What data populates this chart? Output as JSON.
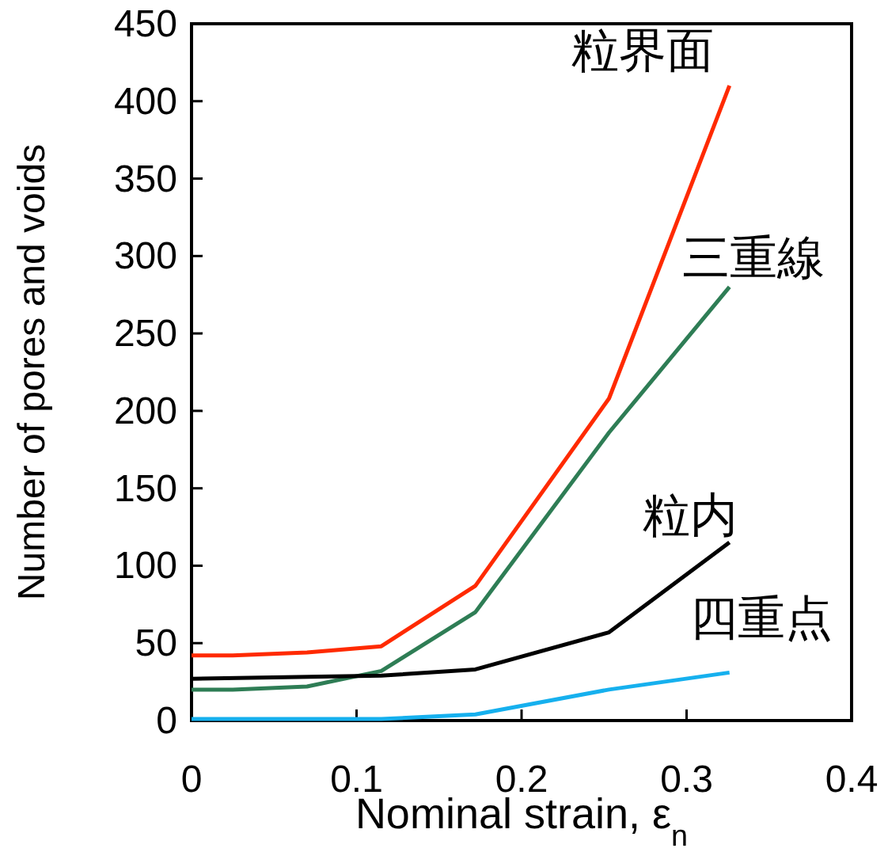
{
  "chart_data": {
    "type": "line",
    "xlabel": "Nominal strain, ε$_{n}$",
    "ylabel": "Number of pores and voids",
    "xlim": [
      0,
      0.4
    ],
    "xticks": [
      0,
      0.1,
      0.2,
      0.3,
      0.4
    ],
    "ylim": [
      0,
      450
    ],
    "yticks": [
      0,
      50,
      100,
      150,
      200,
      250,
      300,
      350,
      400,
      450
    ],
    "grid": false,
    "line_style": "solid",
    "series": [
      {
        "name": "粒界面",
        "color": "#ff2a00",
        "x": [
          0,
          0.025,
          0.07,
          0.115,
          0.172,
          0.253,
          0.326
        ],
        "values": [
          42,
          42,
          44,
          48,
          87,
          208,
          410
        ]
      },
      {
        "name": "三重線",
        "color": "#2e7d55",
        "x": [
          0,
          0.025,
          0.07,
          0.115,
          0.172,
          0.253,
          0.326
        ],
        "values": [
          20,
          20,
          22,
          32,
          70,
          186,
          280
        ]
      },
      {
        "name": "粒内",
        "color": "#000000",
        "x": [
          0,
          0.115,
          0.172,
          0.253,
          0.326
        ],
        "values": [
          27,
          29,
          33,
          57,
          115
        ]
      },
      {
        "name": "四重点",
        "color": "#16b0ee",
        "x": [
          0,
          0.115,
          0.172,
          0.253,
          0.326
        ],
        "values": [
          1,
          1,
          4,
          20,
          31
        ]
      }
    ]
  }
}
